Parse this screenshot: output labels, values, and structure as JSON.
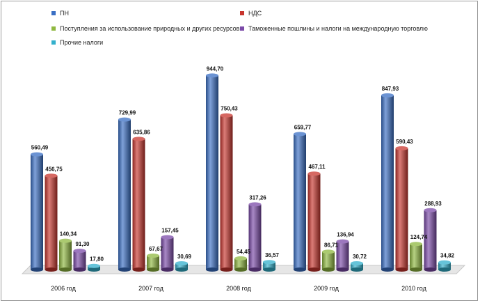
{
  "chart_data": {
    "type": "bar",
    "categories": [
      "2006 год",
      "2007 год",
      "2008 год",
      "2009 год",
      "2010 год"
    ],
    "series": [
      {
        "name": "ПН",
        "color": "#3a6fc4",
        "values": [
          560.49,
          729.99,
          944.7,
          659.77,
          847.93
        ],
        "labels": [
          "560,49",
          "729,99",
          "944,70",
          "659,77",
          "847,93"
        ]
      },
      {
        "name": "НДС",
        "color": "#c8352e",
        "values": [
          456.75,
          635.86,
          750.43,
          467.11,
          590.43
        ],
        "labels": [
          "456,75",
          "635,86",
          "750,43",
          "467,11",
          "590,43"
        ]
      },
      {
        "name": "Поступления за использование природных и других ресурсов",
        "color": "#8fb840",
        "values": [
          140.34,
          67.67,
          54.45,
          86.71,
          124.74
        ],
        "labels": [
          "140,34",
          "67,67",
          "54,45",
          "86,71",
          "124,74"
        ]
      },
      {
        "name": "Таможенные пошлины и налоги на международную торговлю",
        "color": "#7b4aa8",
        "values": [
          91.3,
          157.45,
          317.26,
          136.94,
          288.93
        ],
        "labels": [
          "91,30",
          "157,45",
          "317,26",
          "136,94",
          "288,93"
        ]
      },
      {
        "name": "Прочие налоги",
        "color": "#33b0cc",
        "values": [
          17.8,
          30.69,
          36.57,
          30.72,
          34.82
        ],
        "labels": [
          "17,80",
          "30,69",
          "36,57",
          "30,72",
          "34,82"
        ]
      }
    ],
    "ylim": [
      0,
      1000
    ],
    "legend_position": "top",
    "grid": false,
    "style": "3d-cylinder"
  }
}
